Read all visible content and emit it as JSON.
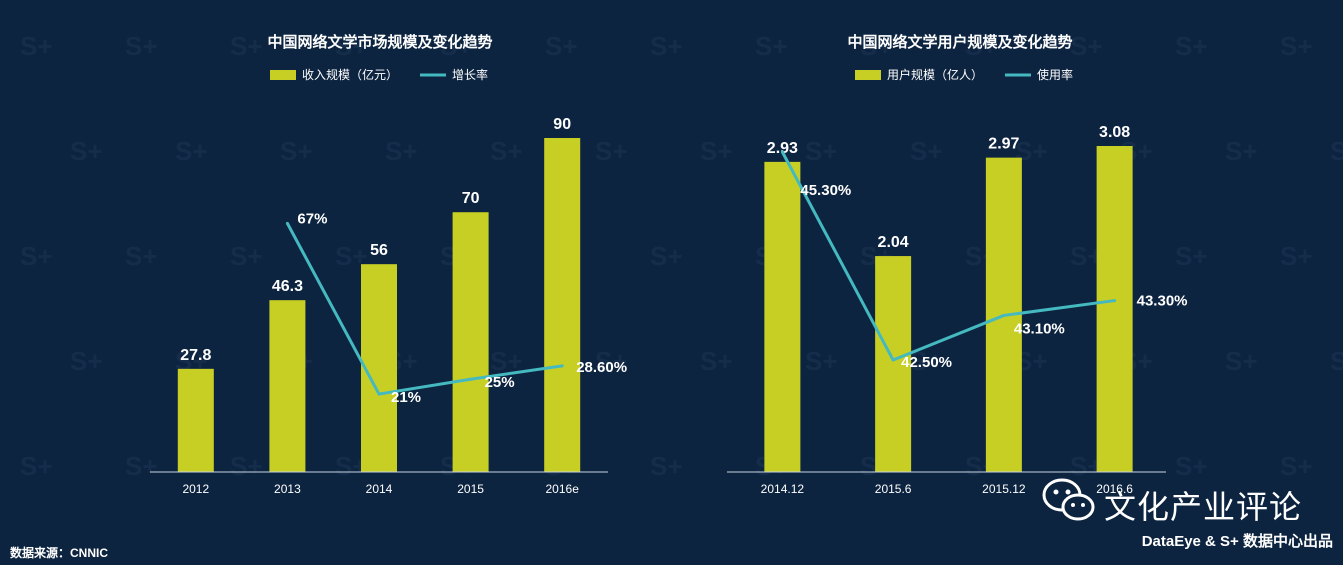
{
  "source_note": "数据来源：CNNIC",
  "watermark": {
    "title": "文化产业评论",
    "credit": "DataEye & S+ 数据中心出品",
    "icon": "wechat-icon"
  },
  "colors": {
    "background": "#0d2440",
    "bar": "#c8cf24",
    "line": "#45b9c0",
    "text": "#ffffff",
    "axis": "#c9d3df"
  },
  "chart_data": [
    {
      "type": "bar",
      "title": "中国网络文学市场规模及变化趋势",
      "categories": [
        "2012",
        "2013",
        "2014",
        "2015",
        "2016e"
      ],
      "series": [
        {
          "name": "收入规模（亿元）",
          "type": "bar",
          "values": [
            27.8,
            46.3,
            56,
            70,
            90
          ],
          "labels": [
            "27.8",
            "46.3",
            "56",
            "70",
            "90"
          ]
        },
        {
          "name": "增长率",
          "type": "line",
          "values": [
            null,
            67,
            21,
            25,
            28.6
          ],
          "labels": [
            "",
            "67%",
            "21%",
            "25%",
            "28.60%"
          ]
        }
      ],
      "ylim": [
        0,
        90
      ],
      "y2lim": [
        0,
        90
      ],
      "grid": false,
      "legend": "top-center"
    },
    {
      "type": "bar",
      "title": "中国网络文学用户规模及变化趋势",
      "categories": [
        "2014.12",
        "2015.6",
        "2015.12",
        "2016.6"
      ],
      "series": [
        {
          "name": "用户规模（亿人）",
          "type": "bar",
          "values": [
            2.93,
            2.04,
            2.97,
            3.08
          ],
          "labels": [
            "2.93",
            "2.04",
            "2.97",
            "3.08"
          ]
        },
        {
          "name": "使用率",
          "type": "line",
          "values": [
            45.3,
            42.5,
            43.1,
            43.3
          ],
          "labels": [
            "45.30%",
            "42.50%",
            "43.10%",
            "43.30%"
          ]
        }
      ],
      "ylim": [
        0,
        3.3
      ],
      "y2lim": [
        41.7,
        45.8
      ],
      "grid": false,
      "legend": "top-center"
    }
  ]
}
